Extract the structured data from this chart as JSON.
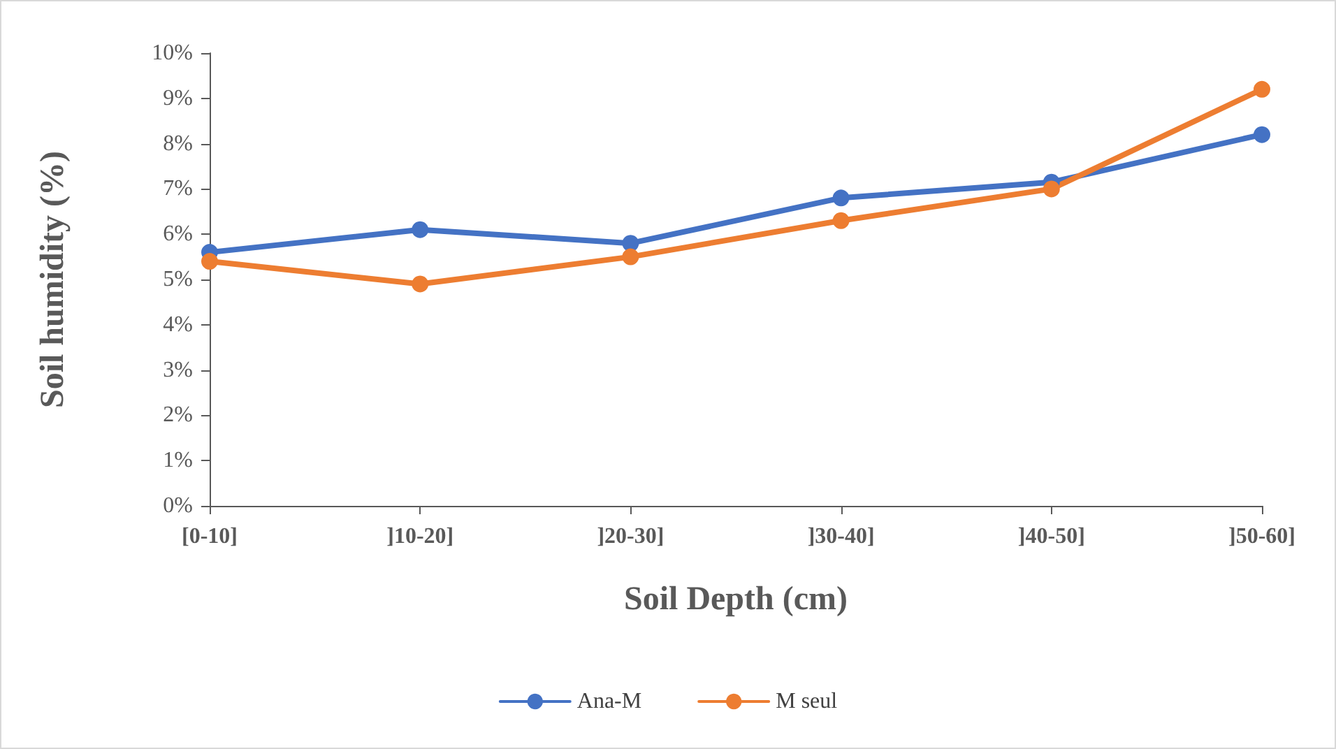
{
  "chart_data": {
    "type": "line",
    "xlabel": "Soil Depth (cm)",
    "ylabel": "Soil humidity (%)",
    "categories": [
      "[0-10]",
      "]10-20]",
      "]20-30]",
      "]30-40]",
      "]40-50]",
      "]50-60]"
    ],
    "series": [
      {
        "name": "Ana-M",
        "color": "#4472c4",
        "values": [
          5.6,
          6.1,
          5.8,
          6.8,
          7.15,
          8.2
        ]
      },
      {
        "name": "M seul",
        "color": "#ed7d31",
        "values": [
          5.4,
          4.9,
          5.5,
          6.3,
          7.0,
          9.2
        ]
      }
    ],
    "ylim": [
      0,
      10
    ],
    "yticks": [
      {
        "value": 0,
        "label": "0%"
      },
      {
        "value": 1,
        "label": "1%"
      },
      {
        "value": 2,
        "label": "2%"
      },
      {
        "value": 3,
        "label": "3%"
      },
      {
        "value": 4,
        "label": "4%"
      },
      {
        "value": 5,
        "label": "5%"
      },
      {
        "value": 6,
        "label": "6%"
      },
      {
        "value": 7,
        "label": "7%"
      },
      {
        "value": 8,
        "label": "8%"
      },
      {
        "value": 9,
        "label": "9%"
      },
      {
        "value": 10,
        "label": "10%"
      }
    ],
    "grid": false,
    "legend": "bottom",
    "marker": "circle",
    "line_style": "solid"
  }
}
